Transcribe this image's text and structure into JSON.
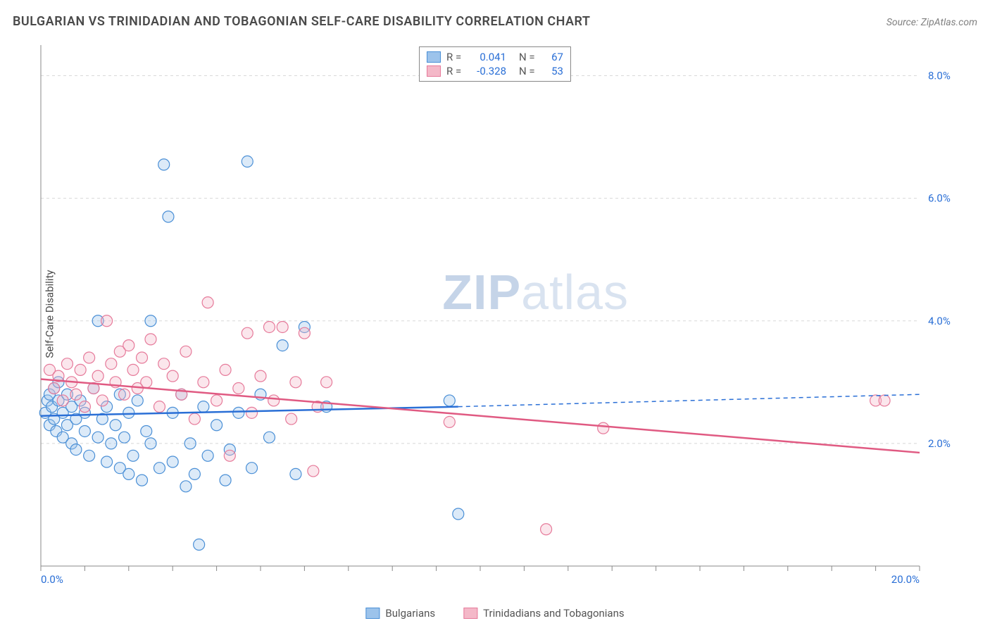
{
  "header": {
    "title": "BULGARIAN VS TRINIDADIAN AND TOBAGONIAN SELF-CARE DISABILITY CORRELATION CHART",
    "source": "Source: ZipAtlas.com"
  },
  "ylabel": "Self-Care Disability",
  "watermark": {
    "left": "ZIP",
    "right": "atlas"
  },
  "chart": {
    "type": "scatter-with-regression",
    "background_color": "#ffffff",
    "grid_color": "#d8d8d8",
    "axis_color": "#888888",
    "tick_label_color": "#2a6fd6",
    "xlim": [
      0,
      20
    ],
    "ylim": [
      0,
      8.5
    ],
    "x_ticks": [
      0,
      1,
      2,
      3,
      4,
      5,
      6,
      7,
      8,
      9,
      10,
      11,
      12,
      13,
      14,
      15,
      16,
      17,
      18,
      19,
      20
    ],
    "x_tick_labels": {
      "0": "0.0%",
      "20": "20.0%"
    },
    "y_ticks": [
      2,
      4,
      6,
      8
    ],
    "y_tick_labels": {
      "2": "2.0%",
      "4": "4.0%",
      "6": "6.0%",
      "8": "8.0%"
    },
    "marker_radius": 8,
    "marker_fill_opacity": 0.35,
    "marker_stroke_width": 1.2,
    "regression_line_width": 2.5,
    "regression_dash_width": 1.5
  },
  "series": [
    {
      "name": "Bulgarians",
      "color_fill": "#9cc3eb",
      "color_stroke": "#4a8fd6",
      "line_color": "#2a6fd6",
      "stats": {
        "R": "0.041",
        "N": "67"
      },
      "regression": {
        "x0": 0,
        "y0": 2.45,
        "x1": 9.5,
        "y1": 2.6,
        "x2": 20,
        "y2": 2.8,
        "dash_from_x": 9.5
      },
      "points": [
        [
          0.1,
          2.5
        ],
        [
          0.15,
          2.7
        ],
        [
          0.2,
          2.3
        ],
        [
          0.2,
          2.8
        ],
        [
          0.25,
          2.6
        ],
        [
          0.3,
          2.4
        ],
        [
          0.3,
          2.9
        ],
        [
          0.35,
          2.2
        ],
        [
          0.4,
          2.7
        ],
        [
          0.4,
          3.0
        ],
        [
          0.5,
          2.1
        ],
        [
          0.5,
          2.5
        ],
        [
          0.6,
          2.3
        ],
        [
          0.6,
          2.8
        ],
        [
          0.7,
          2.0
        ],
        [
          0.7,
          2.6
        ],
        [
          0.8,
          2.4
        ],
        [
          0.8,
          1.9
        ],
        [
          0.9,
          2.7
        ],
        [
          1.0,
          2.2
        ],
        [
          1.0,
          2.5
        ],
        [
          1.1,
          1.8
        ],
        [
          1.2,
          2.9
        ],
        [
          1.3,
          2.1
        ],
        [
          1.3,
          4.0
        ],
        [
          1.4,
          2.4
        ],
        [
          1.5,
          1.7
        ],
        [
          1.5,
          2.6
        ],
        [
          1.6,
          2.0
        ],
        [
          1.7,
          2.3
        ],
        [
          1.8,
          1.6
        ],
        [
          1.8,
          2.8
        ],
        [
          1.9,
          2.1
        ],
        [
          2.0,
          2.5
        ],
        [
          2.0,
          1.5
        ],
        [
          2.1,
          1.8
        ],
        [
          2.2,
          2.7
        ],
        [
          2.3,
          1.4
        ],
        [
          2.4,
          2.2
        ],
        [
          2.5,
          4.0
        ],
        [
          2.5,
          2.0
        ],
        [
          2.7,
          1.6
        ],
        [
          2.8,
          6.55
        ],
        [
          2.9,
          5.7
        ],
        [
          3.0,
          2.5
        ],
        [
          3.0,
          1.7
        ],
        [
          3.2,
          2.8
        ],
        [
          3.3,
          1.3
        ],
        [
          3.4,
          2.0
        ],
        [
          3.5,
          1.5
        ],
        [
          3.6,
          0.35
        ],
        [
          3.7,
          2.6
        ],
        [
          3.8,
          1.8
        ],
        [
          4.0,
          2.3
        ],
        [
          4.2,
          1.4
        ],
        [
          4.3,
          1.9
        ],
        [
          4.5,
          2.5
        ],
        [
          4.7,
          6.6
        ],
        [
          4.8,
          1.6
        ],
        [
          5.0,
          2.8
        ],
        [
          5.2,
          2.1
        ],
        [
          5.5,
          3.6
        ],
        [
          5.8,
          1.5
        ],
        [
          6.0,
          3.9
        ],
        [
          6.5,
          2.6
        ],
        [
          9.3,
          2.7
        ],
        [
          9.5,
          0.85
        ]
      ]
    },
    {
      "name": "Trinidadians and Tobagonians",
      "color_fill": "#f4b8c8",
      "color_stroke": "#e67a9a",
      "line_color": "#e05a82",
      "stats": {
        "R": "-0.328",
        "N": "53"
      },
      "regression": {
        "x0": 0,
        "y0": 3.05,
        "x1": 20,
        "y1": 1.85,
        "dash_from_x": 999
      },
      "points": [
        [
          0.2,
          3.2
        ],
        [
          0.3,
          2.9
        ],
        [
          0.4,
          3.1
        ],
        [
          0.5,
          2.7
        ],
        [
          0.6,
          3.3
        ],
        [
          0.7,
          3.0
        ],
        [
          0.8,
          2.8
        ],
        [
          0.9,
          3.2
        ],
        [
          1.0,
          2.6
        ],
        [
          1.1,
          3.4
        ],
        [
          1.2,
          2.9
        ],
        [
          1.3,
          3.1
        ],
        [
          1.4,
          2.7
        ],
        [
          1.5,
          4.0
        ],
        [
          1.6,
          3.3
        ],
        [
          1.7,
          3.0
        ],
        [
          1.8,
          3.5
        ],
        [
          1.9,
          2.8
        ],
        [
          2.0,
          3.6
        ],
        [
          2.1,
          3.2
        ],
        [
          2.2,
          2.9
        ],
        [
          2.3,
          3.4
        ],
        [
          2.4,
          3.0
        ],
        [
          2.5,
          3.7
        ],
        [
          2.7,
          2.6
        ],
        [
          2.8,
          3.3
        ],
        [
          3.0,
          3.1
        ],
        [
          3.2,
          2.8
        ],
        [
          3.3,
          3.5
        ],
        [
          3.5,
          2.4
        ],
        [
          3.7,
          3.0
        ],
        [
          3.8,
          4.3
        ],
        [
          4.0,
          2.7
        ],
        [
          4.2,
          3.2
        ],
        [
          4.3,
          1.8
        ],
        [
          4.5,
          2.9
        ],
        [
          4.7,
          3.8
        ],
        [
          4.8,
          2.5
        ],
        [
          5.0,
          3.1
        ],
        [
          5.2,
          3.9
        ],
        [
          5.3,
          2.7
        ],
        [
          5.5,
          3.9
        ],
        [
          5.7,
          2.4
        ],
        [
          5.8,
          3.0
        ],
        [
          6.0,
          3.8
        ],
        [
          6.2,
          1.55
        ],
        [
          6.3,
          2.6
        ],
        [
          6.5,
          3.0
        ],
        [
          9.3,
          2.35
        ],
        [
          11.5,
          0.6
        ],
        [
          12.8,
          2.25
        ],
        [
          19.0,
          2.7
        ],
        [
          19.2,
          2.7
        ]
      ]
    }
  ],
  "legend": {
    "items": [
      {
        "label": "Bulgarians"
      },
      {
        "label": "Trinidadians and Tobagonians"
      }
    ]
  }
}
